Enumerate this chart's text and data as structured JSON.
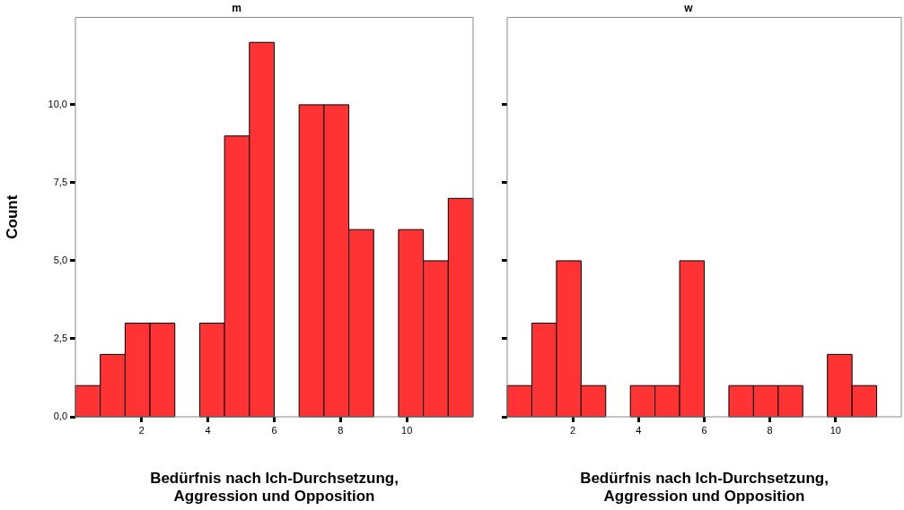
{
  "chart_data": [
    {
      "type": "histogram",
      "title": "m",
      "xlabel": "Bedürfnis nach Ich-Durchsetzung,\nAggression und Opposition",
      "ylabel": "Count",
      "bins": [
        0,
        0.75,
        1.5,
        2.25,
        3,
        3.75,
        4.5,
        5.25,
        6,
        6.75,
        7.5,
        8.25,
        9,
        9.75,
        10.5,
        11.25,
        12
      ],
      "values": [
        1,
        2,
        3,
        3,
        0,
        3,
        9,
        12,
        0,
        10,
        10,
        6,
        0,
        6,
        5,
        7
      ],
      "color": "#ff3333",
      "xlim": [
        0,
        12
      ],
      "xticks": [
        2,
        4,
        6,
        8,
        10
      ],
      "ylim": [
        0,
        12.8
      ],
      "yticks": [
        {
          "value": 0,
          "label": "0,0"
        },
        {
          "value": 2.5,
          "label": "2,5"
        },
        {
          "value": 5,
          "label": "5,0"
        },
        {
          "value": 7.5,
          "label": "7,5"
        },
        {
          "value": 10,
          "label": "10,0"
        }
      ],
      "grid": false,
      "legend": false
    },
    {
      "type": "histogram",
      "title": "w",
      "xlabel": "Bedürfnis nach Ich-Durchsetzung,\nAggression und Opposition",
      "bins": [
        0,
        0.75,
        1.5,
        2.25,
        3,
        3.75,
        4.5,
        5.25,
        6,
        6.75,
        7.5,
        8.25,
        9,
        9.75,
        10.5,
        11.25,
        12
      ],
      "values": [
        1,
        3,
        5,
        1,
        0,
        1,
        1,
        5,
        0,
        1,
        1,
        1,
        0,
        2,
        1,
        0
      ],
      "color": "#ff3333",
      "xlim": [
        0,
        12
      ],
      "xticks": [
        2,
        4,
        6,
        8,
        10
      ],
      "ylim": [
        0,
        12.8
      ],
      "yticks": [
        0,
        2.5,
        5,
        7.5,
        10
      ],
      "grid": false,
      "legend": false,
      "tick_labels": "x"
    }
  ]
}
